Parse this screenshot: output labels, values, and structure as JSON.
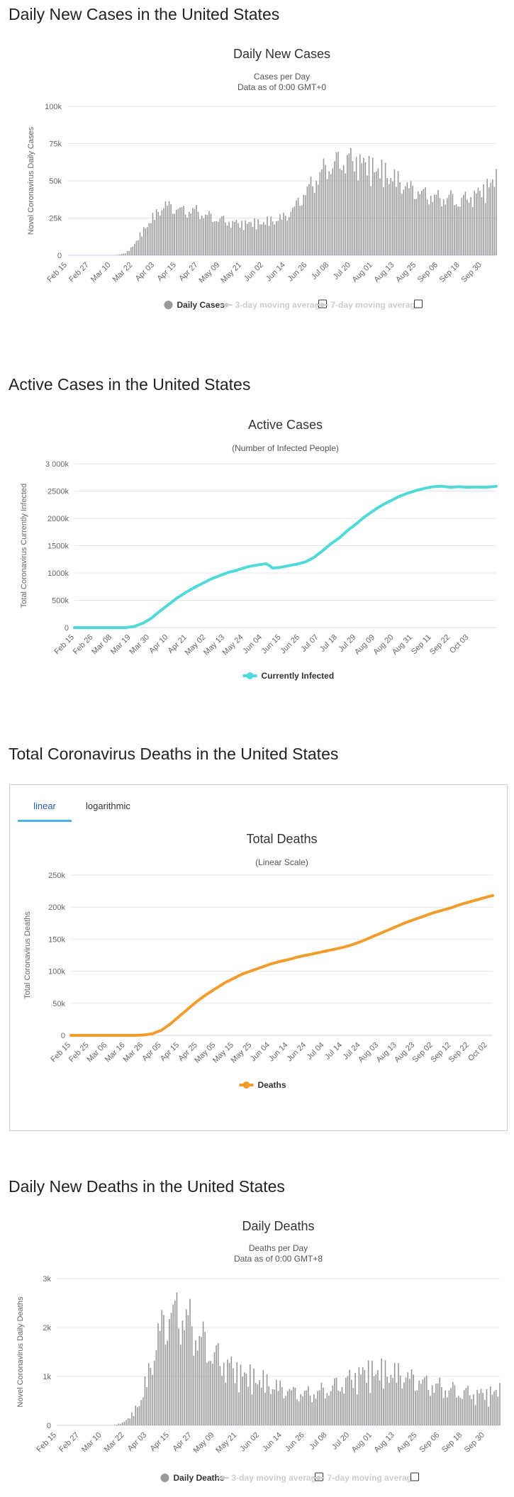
{
  "sections": {
    "s1": "Daily New Cases in the United States",
    "s2": "Active Cases in the United States",
    "s3": "Total Coronavirus Deaths in the United States",
    "s4": "Daily New Deaths in the United States"
  },
  "tabs": {
    "linear": "linear",
    "log": "logarithmic"
  },
  "chart_data": [
    {
      "type": "bar",
      "title": "Daily New Cases",
      "subtitle": [
        "Cases per Day",
        "Data as of 0:00 GMT+0"
      ],
      "ylabel": "Novel Coronavirus Daily Cases",
      "ylim": [
        0,
        100000
      ],
      "yticks": [
        "0",
        "25k",
        "50k",
        "75k",
        "100k"
      ],
      "xticks": [
        "Feb 15",
        "Feb 27",
        "Mar 10",
        "Mar 22",
        "Apr 03",
        "Apr 15",
        "Apr 27",
        "May 09",
        "May 21",
        "Jun 02",
        "Jun 14",
        "Jun 26",
        "Jul 08",
        "Jul 20",
        "Aug 01",
        "Aug 13",
        "Aug 25",
        "Sep 06",
        "Sep 18",
        "Sep 30"
      ],
      "start_date": "2020-02-15",
      "knots": [
        [
          0,
          0
        ],
        [
          24,
          0
        ],
        [
          28,
          300
        ],
        [
          32,
          1500
        ],
        [
          36,
          6000
        ],
        [
          40,
          13000
        ],
        [
          44,
          20000
        ],
        [
          48,
          25000
        ],
        [
          52,
          31000
        ],
        [
          55,
          32000
        ],
        [
          60,
          30000
        ],
        [
          65,
          29000
        ],
        [
          70,
          30000
        ],
        [
          75,
          28000
        ],
        [
          80,
          26000
        ],
        [
          85,
          25000
        ],
        [
          90,
          23000
        ],
        [
          95,
          22000
        ],
        [
          100,
          22000
        ],
        [
          105,
          21500
        ],
        [
          110,
          22000
        ],
        [
          115,
          23000
        ],
        [
          120,
          25000
        ],
        [
          125,
          31000
        ],
        [
          130,
          40000
        ],
        [
          135,
          48000
        ],
        [
          140,
          57000
        ],
        [
          145,
          63000
        ],
        [
          150,
          66000
        ],
        [
          155,
          68000
        ],
        [
          160,
          66000
        ],
        [
          165,
          62000
        ],
        [
          170,
          58000
        ],
        [
          175,
          54000
        ],
        [
          180,
          50000
        ],
        [
          185,
          46000
        ],
        [
          190,
          43000
        ],
        [
          195,
          41000
        ],
        [
          200,
          40000
        ],
        [
          205,
          39000
        ],
        [
          210,
          41000
        ],
        [
          215,
          38000
        ],
        [
          220,
          41000
        ],
        [
          225,
          43000
        ],
        [
          230,
          47000
        ],
        [
          236,
          52000
        ]
      ],
      "amp": 0.28,
      "legend": [
        {
          "label": "Daily Cases",
          "color": "#999999"
        },
        {
          "label": "3-day moving average",
          "color": "#cccccc"
        },
        {
          "label": "7-day moving average",
          "color": "#cccccc"
        }
      ]
    },
    {
      "type": "line",
      "title": "Active Cases",
      "subtitle": [
        "(Number of Infected People)"
      ],
      "ylabel": "Total Coronavirus Currently Infected",
      "ylim": [
        0,
        3000000
      ],
      "yticks": [
        "0",
        "500k",
        "1000k",
        "1500k",
        "2000k",
        "2500k",
        "3 000k"
      ],
      "xticks": [
        "Feb 15",
        "Feb 26",
        "Mar 08",
        "Mar 19",
        "Mar 30",
        "Apr 10",
        "Apr 21",
        "May 02",
        "May 13",
        "May 24",
        "Jun 04",
        "Jun 15",
        "Jun 26",
        "Jul 07",
        "Jul 18",
        "Jul 29",
        "Aug 09",
        "Aug 20",
        "Aug 31",
        "Sep 11",
        "Sep 22",
        "Oct 03"
      ],
      "start_date": "2020-02-15",
      "color": "#4fd9d9",
      "knots": [
        [
          0,
          0
        ],
        [
          30,
          0
        ],
        [
          35,
          20000
        ],
        [
          40,
          80000
        ],
        [
          45,
          170000
        ],
        [
          50,
          300000
        ],
        [
          55,
          420000
        ],
        [
          60,
          540000
        ],
        [
          65,
          640000
        ],
        [
          70,
          730000
        ],
        [
          75,
          810000
        ],
        [
          80,
          890000
        ],
        [
          85,
          950000
        ],
        [
          90,
          1010000
        ],
        [
          95,
          1050000
        ],
        [
          100,
          1100000
        ],
        [
          104,
          1130000
        ],
        [
          108,
          1150000
        ],
        [
          112,
          1170000
        ],
        [
          114,
          1140000
        ],
        [
          116,
          1090000
        ],
        [
          120,
          1100000
        ],
        [
          125,
          1130000
        ],
        [
          130,
          1160000
        ],
        [
          135,
          1200000
        ],
        [
          140,
          1280000
        ],
        [
          145,
          1400000
        ],
        [
          150,
          1530000
        ],
        [
          155,
          1640000
        ],
        [
          160,
          1780000
        ],
        [
          165,
          1900000
        ],
        [
          170,
          2030000
        ],
        [
          175,
          2140000
        ],
        [
          180,
          2240000
        ],
        [
          185,
          2320000
        ],
        [
          190,
          2400000
        ],
        [
          195,
          2460000
        ],
        [
          200,
          2510000
        ],
        [
          205,
          2550000
        ],
        [
          210,
          2580000
        ],
        [
          215,
          2590000
        ],
        [
          220,
          2570000
        ],
        [
          225,
          2580000
        ],
        [
          230,
          2570000
        ],
        [
          235,
          2575000
        ],
        [
          240,
          2570000
        ],
        [
          245,
          2580000
        ],
        [
          247,
          2590000
        ]
      ],
      "legend": [
        {
          "label": "Currently Infected",
          "color": "#4fd9d9"
        }
      ]
    },
    {
      "type": "line",
      "title": "Total Deaths",
      "subtitle": [
        "(Linear Scale)"
      ],
      "ylabel": "Total Coronavirus Deaths",
      "ylim": [
        0,
        250000
      ],
      "yticks": [
        "0",
        "50k",
        "100k",
        "150k",
        "200k",
        "250k"
      ],
      "xticks": [
        "Feb 15",
        "Feb 25",
        "Mar 06",
        "Mar 16",
        "Mar 26",
        "Apr 05",
        "Apr 15",
        "Apr 25",
        "May 05",
        "May 15",
        "May 25",
        "Jun 04",
        "Jun 14",
        "Jun 24",
        "Jul 04",
        "Jul 14",
        "Jul 24",
        "Aug 03",
        "Aug 13",
        "Aug 23",
        "Sep 02",
        "Sep 12",
        "Sep 22",
        "Oct 02"
      ],
      "start_date": "2020-02-15",
      "color": "#f39c2b",
      "knots": [
        [
          0,
          0
        ],
        [
          35,
          0
        ],
        [
          40,
          500
        ],
        [
          45,
          2500
        ],
        [
          50,
          8000
        ],
        [
          55,
          18000
        ],
        [
          60,
          30000
        ],
        [
          65,
          42000
        ],
        [
          70,
          54000
        ],
        [
          75,
          64000
        ],
        [
          80,
          73000
        ],
        [
          85,
          82000
        ],
        [
          90,
          89000
        ],
        [
          95,
          96000
        ],
        [
          100,
          101000
        ],
        [
          105,
          106000
        ],
        [
          110,
          111000
        ],
        [
          115,
          115000
        ],
        [
          120,
          118000
        ],
        [
          125,
          122000
        ],
        [
          130,
          125000
        ],
        [
          135,
          128000
        ],
        [
          140,
          131000
        ],
        [
          145,
          134000
        ],
        [
          150,
          137000
        ],
        [
          155,
          141000
        ],
        [
          160,
          146000
        ],
        [
          165,
          152000
        ],
        [
          170,
          158000
        ],
        [
          175,
          164000
        ],
        [
          180,
          170000
        ],
        [
          185,
          176000
        ],
        [
          190,
          181000
        ],
        [
          195,
          186000
        ],
        [
          200,
          191000
        ],
        [
          205,
          195000
        ],
        [
          210,
          199000
        ],
        [
          215,
          204000
        ],
        [
          220,
          208000
        ],
        [
          225,
          212000
        ],
        [
          230,
          216000
        ],
        [
          233,
          218000
        ]
      ],
      "legend": [
        {
          "label": "Deaths",
          "color": "#f39c2b"
        }
      ]
    },
    {
      "type": "bar",
      "title": "Daily Deaths",
      "subtitle": [
        "Deaths per Day",
        "Data as of 0:00 GMT+8"
      ],
      "ylabel": "Novel Coronavirus Daily Deaths",
      "ylim": [
        0,
        3000
      ],
      "yticks": [
        "0",
        "1k",
        "2k",
        "3k"
      ],
      "xticks": [
        "Feb 15",
        "Feb 27",
        "Mar 10",
        "Mar 22",
        "Apr 03",
        "Apr 15",
        "Apr 27",
        "May 09",
        "May 21",
        "Jun 02",
        "Jun 14",
        "Jun 26",
        "Jul 08",
        "Jul 20",
        "Aug 01",
        "Aug 13",
        "Aug 25",
        "Sep 06",
        "Sep 18",
        "Sep 30"
      ],
      "start_date": "2020-02-15",
      "knots": [
        [
          0,
          0
        ],
        [
          30,
          0
        ],
        [
          35,
          50
        ],
        [
          40,
          200
        ],
        [
          45,
          500
        ],
        [
          50,
          1100
        ],
        [
          55,
          1800
        ],
        [
          60,
          2100
        ],
        [
          65,
          2200
        ],
        [
          70,
          2100
        ],
        [
          75,
          1900
        ],
        [
          80,
          1700
        ],
        [
          85,
          1500
        ],
        [
          90,
          1350
        ],
        [
          95,
          1200
        ],
        [
          100,
          1050
        ],
        [
          105,
          950
        ],
        [
          110,
          850
        ],
        [
          115,
          750
        ],
        [
          120,
          700
        ],
        [
          125,
          650
        ],
        [
          130,
          620
        ],
        [
          135,
          650
        ],
        [
          140,
          700
        ],
        [
          145,
          800
        ],
        [
          150,
          900
        ],
        [
          155,
          1000
        ],
        [
          160,
          1100
        ],
        [
          165,
          1150
        ],
        [
          170,
          1100
        ],
        [
          175,
          1050
        ],
        [
          180,
          1000
        ],
        [
          185,
          950
        ],
        [
          190,
          900
        ],
        [
          195,
          850
        ],
        [
          200,
          820
        ],
        [
          205,
          800
        ],
        [
          210,
          780
        ],
        [
          215,
          750
        ],
        [
          220,
          730
        ],
        [
          225,
          700
        ],
        [
          230,
          700
        ],
        [
          236,
          720
        ]
      ],
      "amp": 0.5,
      "legend": [
        {
          "label": "Daily Deaths",
          "color": "#999999"
        },
        {
          "label": "3-day moving average",
          "color": "#cccccc"
        },
        {
          "label": "7-day moving average",
          "color": "#cccccc"
        }
      ]
    }
  ]
}
